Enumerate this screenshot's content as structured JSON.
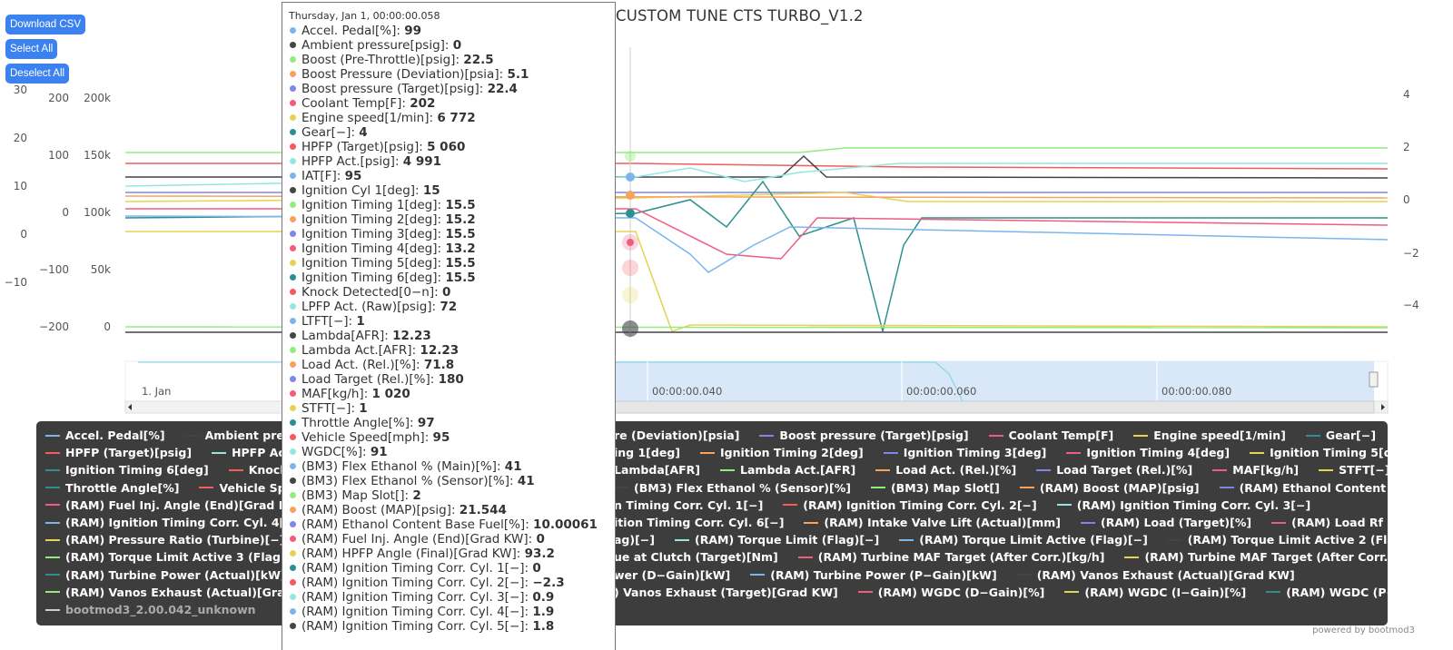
{
  "buttons": [
    "Download CSV",
    "Select All",
    "Deselect All"
  ],
  "title": "CUSTOM TUNE CTS TURBO_V1.2",
  "axes": [
    {
      "side": "left",
      "labels": [
        "30",
        "20",
        "10",
        "0",
        "−10"
      ]
    },
    {
      "side": "left",
      "labels": [
        "200",
        "100",
        "0",
        "−100",
        "−200"
      ]
    },
    {
      "side": "left",
      "labels": [
        "200k",
        "150k",
        "100k",
        "50k",
        "0"
      ]
    },
    {
      "side": "right",
      "labels": [
        "4",
        "2",
        "0",
        "−2",
        "−4"
      ]
    }
  ],
  "navigator": {
    "labels": [
      "1. Jan",
      "00:00:00.040",
      "00:00:00.060",
      "00:00:00.080"
    ]
  },
  "tooltip": {
    "header": "Thursday, Jan 1, 00:00:00.058",
    "items": [
      {
        "name": "Accel. Pedal[%]",
        "color": "#7cb5ec",
        "value": "99"
      },
      {
        "name": "Ambient pressure[psig]",
        "color": "#434348",
        "value": "0"
      },
      {
        "name": "Boost (Pre-Throttle)[psig]",
        "color": "#90ed7d",
        "value": "22.5"
      },
      {
        "name": "Boost Pressure (Deviation)[psia]",
        "color": "#f7a35c",
        "value": "5.1"
      },
      {
        "name": "Boost pressure (Target)[psig]",
        "color": "#8085e9",
        "value": "22.4"
      },
      {
        "name": "Coolant Temp[F]",
        "color": "#f15c80",
        "value": "202"
      },
      {
        "name": "Engine speed[1/min]",
        "color": "#e4d354",
        "value": "6 772"
      },
      {
        "name": "Gear[−]",
        "color": "#2b908f",
        "value": "4"
      },
      {
        "name": "HPFP (Target)[psig]",
        "color": "#f45b5b",
        "value": "5 060"
      },
      {
        "name": "HPFP Act.[psig]",
        "color": "#91e8e1",
        "value": "4 991"
      },
      {
        "name": "IAT[F]",
        "color": "#7cb5ec",
        "value": "95"
      },
      {
        "name": "Ignition Cyl 1[deg]",
        "color": "#434348",
        "value": "15"
      },
      {
        "name": "Ignition Timing 1[deg]",
        "color": "#90ed7d",
        "value": "15.5"
      },
      {
        "name": "Ignition Timing 2[deg]",
        "color": "#f7a35c",
        "value": "15.2"
      },
      {
        "name": "Ignition Timing 3[deg]",
        "color": "#8085e9",
        "value": "15.5"
      },
      {
        "name": "Ignition Timing 4[deg]",
        "color": "#f15c80",
        "value": "13.2"
      },
      {
        "name": "Ignition Timing 5[deg]",
        "color": "#e4d354",
        "value": "15.5"
      },
      {
        "name": "Ignition Timing 6[deg]",
        "color": "#2b908f",
        "value": "15.5"
      },
      {
        "name": "Knock Detected[0−n]",
        "color": "#f45b5b",
        "value": "0"
      },
      {
        "name": "LPFP Act. (Raw)[psig]",
        "color": "#91e8e1",
        "value": "72"
      },
      {
        "name": "LTFT[−]",
        "color": "#7cb5ec",
        "value": "1"
      },
      {
        "name": "Lambda[AFR]",
        "color": "#434348",
        "value": "12.23"
      },
      {
        "name": "Lambda Act.[AFR]",
        "color": "#90ed7d",
        "value": "12.23"
      },
      {
        "name": "Load Act. (Rel.)[%]",
        "color": "#f7a35c",
        "value": "71.8"
      },
      {
        "name": "Load Target (Rel.)[%]",
        "color": "#8085e9",
        "value": "180"
      },
      {
        "name": "MAF[kg/h]",
        "color": "#f15c80",
        "value": "1 020"
      },
      {
        "name": "STFT[−]",
        "color": "#e4d354",
        "value": "1"
      },
      {
        "name": "Throttle Angle[%]",
        "color": "#2b908f",
        "value": "97"
      },
      {
        "name": "Vehicle Speed[mph]",
        "color": "#f45b5b",
        "value": "95"
      },
      {
        "name": "WGDC[%]",
        "color": "#91e8e1",
        "value": "91"
      },
      {
        "name": "(BM3) Flex Ethanol % (Main)[%]",
        "color": "#7cb5ec",
        "value": "41"
      },
      {
        "name": "(BM3) Flex Ethanol % (Sensor)[%]",
        "color": "#434348",
        "value": "41"
      },
      {
        "name": "(BM3) Map Slot[]",
        "color": "#90ed7d",
        "value": "2"
      },
      {
        "name": "(RAM) Boost (MAP)[psig]",
        "color": "#f7a35c",
        "value": "21.544"
      },
      {
        "name": "(RAM) Ethanol Content Base Fuel[%]",
        "color": "#8085e9",
        "value": "10.00061"
      },
      {
        "name": "(RAM) Fuel Inj. Angle (End)[Grad KW]",
        "color": "#f15c80",
        "value": "0"
      },
      {
        "name": "(RAM) HPFP Angle (Final)[Grad KW]",
        "color": "#e4d354",
        "value": "93.2"
      },
      {
        "name": "(RAM) Ignition Timing Corr. Cyl. 1[−]",
        "color": "#2b908f",
        "value": "0"
      },
      {
        "name": "(RAM) Ignition Timing Corr. Cyl. 2[−]",
        "color": "#f45b5b",
        "value": "−2.3"
      },
      {
        "name": "(RAM) Ignition Timing Corr. Cyl. 3[−]",
        "color": "#91e8e1",
        "value": "0.9"
      },
      {
        "name": "(RAM) Ignition Timing Corr. Cyl. 4[−]",
        "color": "#7cb5ec",
        "value": "1.9"
      },
      {
        "name": "(RAM) Ignition Timing Corr. Cyl. 5[−]",
        "color": "#434348",
        "value": "1.8"
      }
    ]
  },
  "legend": {
    "rows": [
      {
        "left": [
          {
            "name": "Accel. Pedal[%]",
            "color": "#7cb5ec"
          },
          {
            "name": "Ambient pressure[psig]",
            "color": "#434348"
          }
        ],
        "right": [
          {
            "name": "re (Deviation)[psia]"
          },
          {
            "name": "Boost pressure (Target)[psig]",
            "color": "#8085e9"
          },
          {
            "name": "Coolant Temp[F]",
            "color": "#f15c80"
          },
          {
            "name": "Engine speed[1/min]",
            "color": "#e4d354"
          },
          {
            "name": "Gear[−]",
            "color": "#2b908f"
          }
        ]
      },
      {
        "left": [
          {
            "name": "HPFP (Target)[psig]",
            "color": "#f45b5b"
          },
          {
            "name": "HPFP Act.[psig]",
            "color": "#91e8e1"
          }
        ],
        "right": [
          {
            "name": "ing 1[deg]"
          },
          {
            "name": "Ignition Timing 2[deg]",
            "color": "#f7a35c"
          },
          {
            "name": "Ignition Timing 3[deg]",
            "color": "#8085e9"
          },
          {
            "name": "Ignition Timing 4[deg]",
            "color": "#f15c80"
          },
          {
            "name": "Ignition Timing 5[deg]",
            "color": "#e4d354"
          }
        ]
      },
      {
        "left": [
          {
            "name": "Ignition Timing 6[deg]",
            "color": "#2b908f"
          },
          {
            "name": "Knock Detected[0−n]",
            "color": "#f45b5b"
          }
        ],
        "right": [
          {
            "name": "Lambda[AFR]"
          },
          {
            "name": "Lambda Act.[AFR]",
            "color": "#90ed7d"
          },
          {
            "name": "Load Act. (Rel.)[%]",
            "color": "#f7a35c"
          },
          {
            "name": "Load Target (Rel.)[%]",
            "color": "#8085e9"
          },
          {
            "name": "MAF[kg/h]",
            "color": "#f15c80"
          },
          {
            "name": "STFT[−]",
            "color": "#e4d354"
          }
        ]
      },
      {
        "left": [
          {
            "name": "Throttle Angle[%]",
            "color": "#2b908f"
          },
          {
            "name": "Vehicle Speed[mph]",
            "color": "#f45b5b"
          }
        ],
        "right": [
          {
            "name": "(BM3) Flex Ethanol % (Sensor)[%]",
            "color": "#434348"
          },
          {
            "name": "(BM3) Map Slot[]",
            "color": "#90ed7d"
          },
          {
            "name": "(RAM) Boost (MAP)[psig]",
            "color": "#f7a35c"
          },
          {
            "name": "(RAM) Ethanol Content Base Fuel[%]",
            "color": "#8085e9"
          }
        ]
      },
      {
        "left": [
          {
            "name": "(RAM) Fuel Inj. Angle (End)[Grad KW]",
            "color": "#f15c80"
          }
        ],
        "right": [
          {
            "name": "n Timing Corr. Cyl. 1[−]"
          },
          {
            "name": "(RAM) Ignition Timing Corr. Cyl. 2[−]",
            "color": "#f45b5b"
          },
          {
            "name": "(RAM) Ignition Timing Corr. Cyl. 3[−]",
            "color": "#91e8e1"
          }
        ]
      },
      {
        "left": [
          {
            "name": "(RAM) Ignition Timing Corr. Cyl. 4[−]",
            "color": "#7cb5ec"
          }
        ],
        "right": [
          {
            "name": "ition Timing Corr. Cyl. 6[−]"
          },
          {
            "name": "(RAM) Intake Valve Lift (Actual)[mm]",
            "color": "#f7a35c"
          },
          {
            "name": "(RAM) Load (Target)[%]",
            "color": "#8085e9"
          },
          {
            "name": "(RAM) Load Rf (Actual)[%]",
            "color": "#f15c80"
          }
        ]
      },
      {
        "left": [
          {
            "name": "(RAM) Pressure Ratio (Turbine)[−]",
            "color": "#e4d354"
          }
        ],
        "right": [
          {
            "name": "ag)[−]"
          },
          {
            "name": "(RAM) Torque Limit (Flag)[−]",
            "color": "#91e8e1"
          },
          {
            "name": "(RAM) Torque Limit Active (Flag)[−]",
            "color": "#7cb5ec"
          },
          {
            "name": "(RAM) Torque Limit Active 2 (Flag)[−]",
            "color": "#434348"
          }
        ]
      },
      {
        "left": [
          {
            "name": "(RAM) Torque Limit Active 3 (Flag)[−]",
            "color": "#90ed7d"
          }
        ],
        "right": [
          {
            "name": "ue at Clutch (Target)[Nm]"
          },
          {
            "name": "(RAM) Turbine MAF Target (After Corr.)[kg/h]",
            "color": "#f15c80"
          },
          {
            "name": "(RAM) Turbine MAF Target (After Corr.)[kg/h]",
            "color": "#e4d354"
          }
        ]
      },
      {
        "left": [
          {
            "name": "(RAM) Turbine Power (Actual)[kW]",
            "color": "#2b908f"
          }
        ],
        "right": [
          {
            "name": "wer (D−Gain)[kW]"
          },
          {
            "name": "(RAM) Turbine Power (P−Gain)[kW]",
            "color": "#7cb5ec"
          },
          {
            "name": "(RAM) Vanos Exhaust (Actual)[Grad KW]",
            "color": "#434348"
          }
        ]
      },
      {
        "left": [
          {
            "name": "(RAM) Vanos Exhaust (Actual)[Grad KW]",
            "color": "#90ed7d"
          }
        ],
        "right": [
          {
            "name": ") Vanos Exhaust (Target)[Grad KW]"
          },
          {
            "name": "(RAM) WGDC (D−Gain)[%]",
            "color": "#f15c80"
          },
          {
            "name": "(RAM) WGDC (I−Gain)[%]",
            "color": "#e4d354"
          },
          {
            "name": "(RAM) WGDC (P−Gain)[%]",
            "color": "#2b908f"
          }
        ]
      },
      {
        "left": [
          {
            "name": "bootmod3_2.00.042_unknown",
            "color": "#cccccc",
            "hidden": true
          }
        ],
        "right": []
      }
    ]
  },
  "credit": "powered by bootmod3"
}
